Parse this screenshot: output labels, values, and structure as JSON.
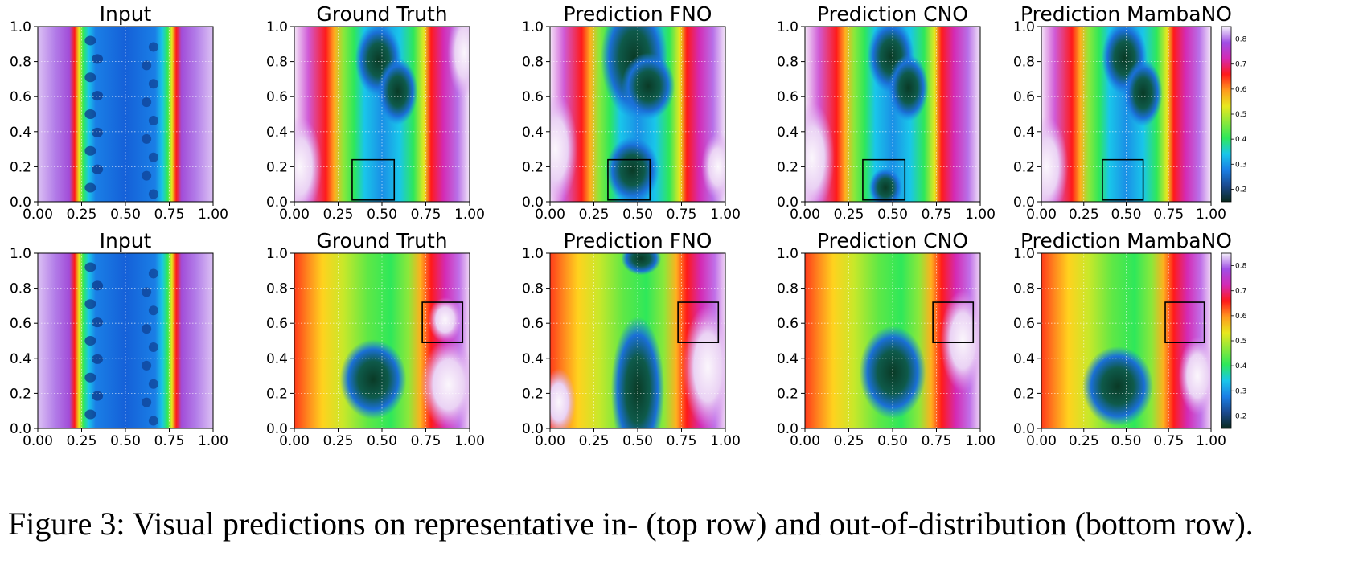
{
  "caption": "Figure 3: Visual predictions on representative in- (top row) and out-of-distribution (bottom row).",
  "colormap": [
    "#0a2a1e",
    "#1b4a90",
    "#1a7fe6",
    "#19c6ea",
    "#2ee85a",
    "#8ce83a",
    "#e8e81e",
    "#ff9a1e",
    "#ff1a1a",
    "#d42ab4",
    "#a04ee6",
    "#f4f0fa"
  ],
  "colorbar_ticks": [
    "0.2",
    "0.3",
    "0.4",
    "0.5",
    "0.6",
    "0.7",
    "0.8"
  ],
  "colorbar_range": [
    0.15,
    0.85
  ],
  "chart_data": [
    {
      "type": "heatmap",
      "title": "Input",
      "row": 0,
      "col": 0,
      "x_ticks": [
        "0.00",
        "0.25",
        "0.50",
        "0.75",
        "1.00"
      ],
      "y_ticks": [
        "0.0",
        "0.2",
        "0.4",
        "0.6",
        "0.8",
        "1.0"
      ],
      "xlim": [
        0,
        1
      ],
      "ylim": [
        0,
        1
      ],
      "grid": true,
      "box": null
    },
    {
      "type": "heatmap",
      "title": "Ground Truth",
      "row": 0,
      "col": 1,
      "x_ticks": [
        "0.00",
        "0.25",
        "0.50",
        "0.75",
        "1.00"
      ],
      "y_ticks": [
        "0.0",
        "0.2",
        "0.4",
        "0.6",
        "0.8",
        "1.0"
      ],
      "xlim": [
        0,
        1
      ],
      "ylim": [
        0,
        1
      ],
      "grid": true,
      "box": [
        0.33,
        0.01,
        0.57,
        0.24
      ]
    },
    {
      "type": "heatmap",
      "title": "Prediction FNO",
      "row": 0,
      "col": 2,
      "x_ticks": [
        "0.00",
        "0.25",
        "0.50",
        "0.75",
        "1.00"
      ],
      "y_ticks": [
        "0.0",
        "0.2",
        "0.4",
        "0.6",
        "0.8",
        "1.0"
      ],
      "xlim": [
        0,
        1
      ],
      "ylim": [
        0,
        1
      ],
      "grid": true,
      "box": [
        0.33,
        0.01,
        0.57,
        0.24
      ]
    },
    {
      "type": "heatmap",
      "title": "Prediction CNO",
      "row": 0,
      "col": 3,
      "x_ticks": [
        "0.00",
        "0.25",
        "0.50",
        "0.75",
        "1.00"
      ],
      "y_ticks": [
        "0.0",
        "0.2",
        "0.4",
        "0.6",
        "0.8",
        "1.0"
      ],
      "xlim": [
        0,
        1
      ],
      "ylim": [
        0,
        1
      ],
      "grid": true,
      "box": [
        0.33,
        0.01,
        0.57,
        0.24
      ]
    },
    {
      "type": "heatmap",
      "title": "Prediction MambaNO",
      "row": 0,
      "col": 4,
      "x_ticks": [
        "0.00",
        "0.25",
        "0.50",
        "0.75",
        "1.00"
      ],
      "y_ticks": [
        "0.0",
        "0.2",
        "0.4",
        "0.6",
        "0.8",
        "1.0"
      ],
      "xlim": [
        0,
        1
      ],
      "ylim": [
        0,
        1
      ],
      "grid": true,
      "box": [
        0.36,
        0.01,
        0.6,
        0.24
      ]
    },
    {
      "type": "heatmap",
      "title": "Input",
      "row": 1,
      "col": 0,
      "x_ticks": [
        "0.00",
        "0.25",
        "0.50",
        "0.75",
        "1.00"
      ],
      "y_ticks": [
        "0.0",
        "0.2",
        "0.4",
        "0.6",
        "0.8",
        "1.0"
      ],
      "xlim": [
        0,
        1
      ],
      "ylim": [
        0,
        1
      ],
      "grid": true,
      "box": null
    },
    {
      "type": "heatmap",
      "title": "Ground Truth",
      "row": 1,
      "col": 1,
      "x_ticks": [
        "0.00",
        "0.25",
        "0.50",
        "0.75",
        "1.00"
      ],
      "y_ticks": [
        "0.0",
        "0.2",
        "0.4",
        "0.6",
        "0.8",
        "1.0"
      ],
      "xlim": [
        0,
        1
      ],
      "ylim": [
        0,
        1
      ],
      "grid": true,
      "box": [
        0.73,
        0.49,
        0.96,
        0.72
      ]
    },
    {
      "type": "heatmap",
      "title": "Prediction FNO",
      "row": 1,
      "col": 2,
      "x_ticks": [
        "0.00",
        "0.25",
        "0.50",
        "0.75",
        "1.00"
      ],
      "y_ticks": [
        "0.0",
        "0.2",
        "0.4",
        "0.6",
        "0.8",
        "1.0"
      ],
      "xlim": [
        0,
        1
      ],
      "ylim": [
        0,
        1
      ],
      "grid": true,
      "box": [
        0.73,
        0.49,
        0.96,
        0.72
      ]
    },
    {
      "type": "heatmap",
      "title": "Prediction CNO",
      "row": 1,
      "col": 3,
      "x_ticks": [
        "0.00",
        "0.25",
        "0.50",
        "0.75",
        "1.00"
      ],
      "y_ticks": [
        "0.0",
        "0.2",
        "0.4",
        "0.6",
        "0.8",
        "1.0"
      ],
      "xlim": [
        0,
        1
      ],
      "ylim": [
        0,
        1
      ],
      "grid": true,
      "box": [
        0.73,
        0.49,
        0.96,
        0.72
      ]
    },
    {
      "type": "heatmap",
      "title": "Prediction MambaNO",
      "row": 1,
      "col": 4,
      "x_ticks": [
        "0.00",
        "0.25",
        "0.50",
        "0.75",
        "1.00"
      ],
      "y_ticks": [
        "0.0",
        "0.2",
        "0.4",
        "0.6",
        "0.8",
        "1.0"
      ],
      "xlim": [
        0,
        1
      ],
      "ylim": [
        0,
        1
      ],
      "grid": true,
      "box": [
        0.73,
        0.49,
        0.96,
        0.72
      ]
    }
  ]
}
